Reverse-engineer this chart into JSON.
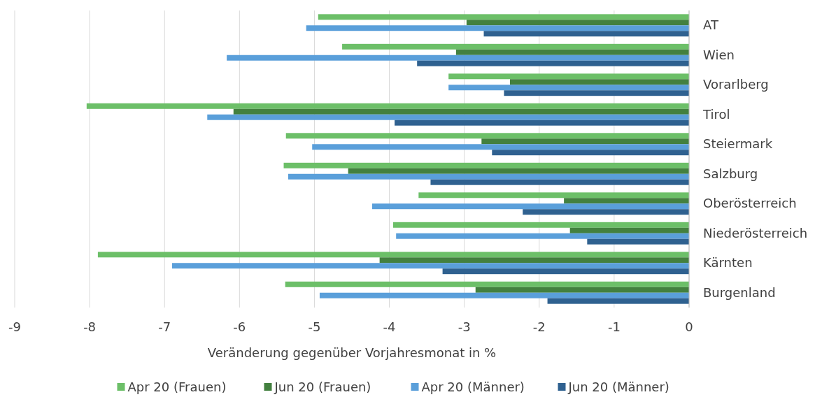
{
  "chart_data": {
    "type": "bar",
    "orientation": "horizontal",
    "xlabel": "Veränderung gegenüber Vorjahresmonat in %",
    "categories": [
      "AT",
      "Wien",
      "Vorarlberg",
      "Tirol",
      "Steiermark",
      "Salzburg",
      "Oberösterreich",
      "Niederösterreich",
      "Kärnten",
      "Burgenland"
    ],
    "series": [
      {
        "name": "Apr 20 (Frauen)",
        "color": "#6cbf68",
        "values": [
          -4.95,
          -4.63,
          -3.21,
          -8.04,
          -5.38,
          -5.41,
          -3.61,
          -3.95,
          -7.89,
          -5.39
        ]
      },
      {
        "name": "Jun 20 (Frauen)",
        "color": "#43803f",
        "values": [
          -2.97,
          -3.11,
          -2.39,
          -6.08,
          -2.77,
          -4.55,
          -1.67,
          -1.59,
          -4.13,
          -2.85
        ]
      },
      {
        "name": "Apr 20 (Männer)",
        "color": "#5a9fda",
        "values": [
          -5.11,
          -6.17,
          -3.21,
          -6.43,
          -5.03,
          -5.35,
          -4.23,
          -3.91,
          -6.9,
          -4.93
        ]
      },
      {
        "name": "Jun 20 (Männer)",
        "color": "#2f6190",
        "values": [
          -2.74,
          -3.63,
          -2.47,
          -3.93,
          -2.63,
          -3.45,
          -2.22,
          -1.36,
          -3.29,
          -1.89
        ]
      }
    ],
    "xlim": [
      -9,
      0
    ],
    "xticks": [
      -9,
      -8,
      -7,
      -6,
      -5,
      -4,
      -3,
      -2,
      -1,
      0
    ],
    "grid": "x",
    "legend": "bottom"
  }
}
